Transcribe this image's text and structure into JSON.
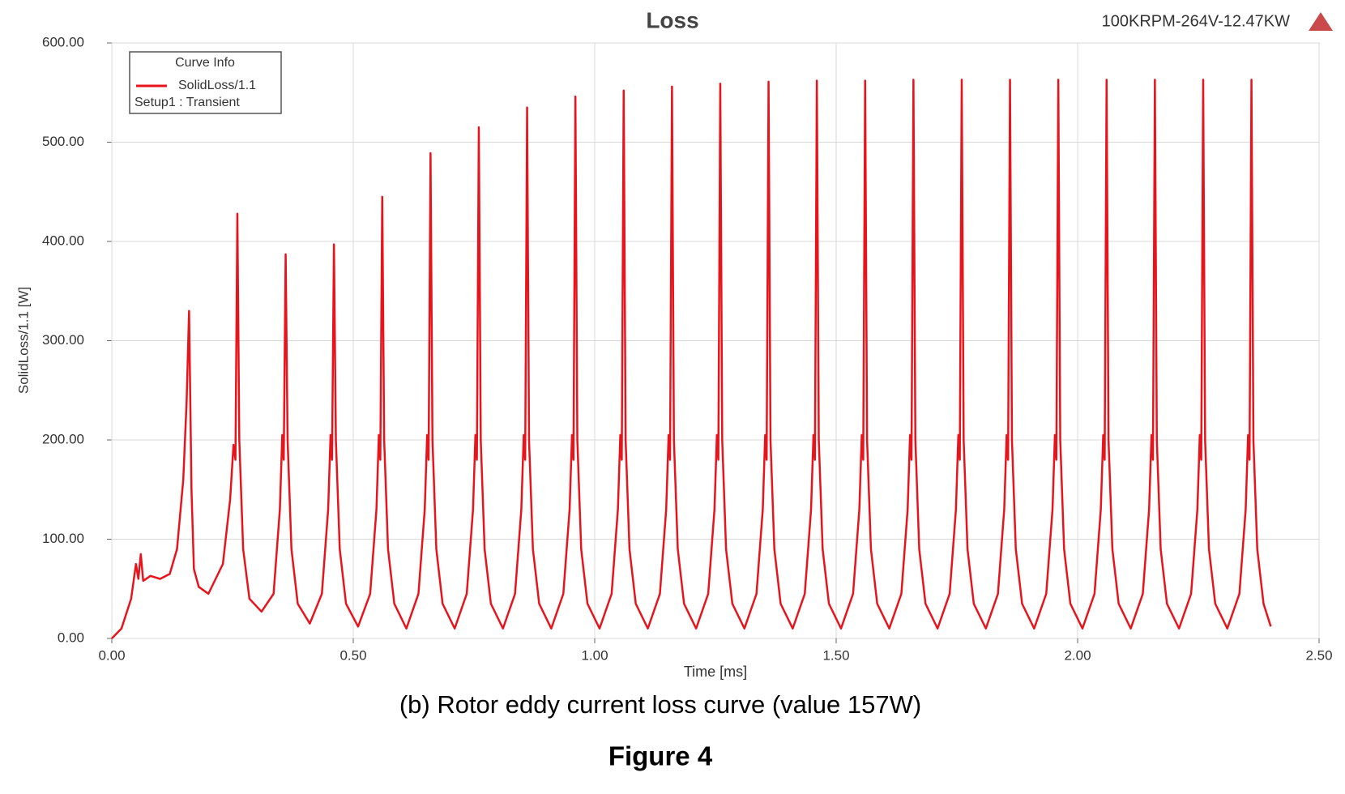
{
  "chart_data": {
    "type": "line",
    "title": "Loss",
    "subtitle": "100KRPM-264V-12.47KW",
    "legend_title": "Curve Info",
    "legend_note": "Setup1 : Transient",
    "xlabel": "Time [ms]",
    "ylabel": "SolidLoss/1.1 [W]",
    "caption": "(b) Rotor eddy current loss curve (value 157W)",
    "figure_label": "Figure 4",
    "xlim": [
      0,
      2.5
    ],
    "xticks": [
      {
        "value": 0,
        "label": "0.00"
      },
      {
        "value": 0.5,
        "label": "0.50"
      },
      {
        "value": 1,
        "label": "1.00"
      },
      {
        "value": 1.5,
        "label": "1.50"
      },
      {
        "value": 2,
        "label": "2.00"
      },
      {
        "value": 2.5,
        "label": "2.50"
      }
    ],
    "ylim": [
      0,
      600
    ],
    "yticks": [
      {
        "value": 0,
        "label": "0.00"
      },
      {
        "value": 100,
        "label": "100.00"
      },
      {
        "value": 200,
        "label": "200.00"
      },
      {
        "value": 300,
        "label": "300.00"
      },
      {
        "value": 400,
        "label": "400.00"
      },
      {
        "value": 500,
        "label": "500.00"
      },
      {
        "value": 600,
        "label": "600.00"
      }
    ],
    "grid": true,
    "legend": "upper left",
    "x": [
      0,
      0.02,
      0.04,
      0.05,
      0.055,
      0.06,
      0.065,
      0.08,
      0.1,
      0.12,
      0.135,
      0.148,
      0.155,
      0.16,
      0.165,
      0.17,
      0.18,
      0.2,
      0.23,
      0.245,
      0.252,
      0.256,
      0.26,
      0.264,
      0.272,
      0.285,
      0.31,
      0.335,
      0.348,
      0.353,
      0.356,
      0.36,
      0.364,
      0.372,
      0.385,
      0.41,
      0.435,
      0.448,
      0.453,
      0.456,
      0.46,
      0.464,
      0.472,
      0.485,
      0.51,
      0.535,
      0.548,
      0.553,
      0.556,
      0.56,
      0.564,
      0.572,
      0.585,
      0.61,
      0.635,
      0.648,
      0.653,
      0.656,
      0.66,
      0.664,
      0.672,
      0.685,
      0.71,
      0.735,
      0.748,
      0.753,
      0.756,
      0.76,
      0.764,
      0.772,
      0.785,
      0.81,
      0.835,
      0.848,
      0.853,
      0.856,
      0.86,
      0.864,
      0.872,
      0.885,
      0.91,
      0.935,
      0.948,
      0.953,
      0.956,
      0.96,
      0.964,
      0.972,
      0.985,
      1.01,
      1.035,
      1.048,
      1.053,
      1.056,
      1.06,
      1.064,
      1.072,
      1.085,
      1.11,
      1.135,
      1.148,
      1.153,
      1.156,
      1.16,
      1.164,
      1.172,
      1.185,
      1.21,
      1.235,
      1.248,
      1.253,
      1.256,
      1.26,
      1.264,
      1.272,
      1.285,
      1.31,
      1.335,
      1.348,
      1.353,
      1.356,
      1.36,
      1.364,
      1.372,
      1.385,
      1.41,
      1.435,
      1.448,
      1.453,
      1.456,
      1.46,
      1.464,
      1.472,
      1.485,
      1.51,
      1.535,
      1.548,
      1.553,
      1.556,
      1.56,
      1.564,
      1.572,
      1.585,
      1.61,
      1.635,
      1.648,
      1.653,
      1.656,
      1.66,
      1.664,
      1.672,
      1.685,
      1.71,
      1.735,
      1.748,
      1.753,
      1.756,
      1.76,
      1.764,
      1.772,
      1.785,
      1.81,
      1.835,
      1.848,
      1.853,
      1.856,
      1.86,
      1.864,
      1.872,
      1.885,
      1.91,
      1.935,
      1.948,
      1.953,
      1.956,
      1.96,
      1.964,
      1.972,
      1.985,
      2.01,
      2.035,
      2.048,
      2.053,
      2.056,
      2.06,
      2.064,
      2.072,
      2.085,
      2.11,
      2.135,
      2.148,
      2.153,
      2.156,
      2.16,
      2.164,
      2.172,
      2.185,
      2.21,
      2.235,
      2.248,
      2.253,
      2.256,
      2.26,
      2.264,
      2.272,
      2.285,
      2.31,
      2.335,
      2.348,
      2.353,
      2.356,
      2.36,
      2.364,
      2.372,
      2.385,
      2.4
    ],
    "series": [
      {
        "name": "SolidLoss/1.1",
        "color": "#e8141c",
        "values": [
          0,
          10,
          40,
          75,
          60,
          85,
          58,
          63,
          60,
          65,
          90,
          160,
          240,
          330,
          150,
          70,
          52,
          45,
          75,
          140,
          195,
          180,
          428,
          200,
          90,
          40,
          27,
          45,
          130,
          205,
          180,
          387,
          200,
          90,
          35,
          15,
          45,
          130,
          205,
          180,
          397,
          200,
          90,
          35,
          12,
          45,
          130,
          205,
          180,
          445,
          200,
          90,
          35,
          10,
          45,
          130,
          205,
          180,
          489,
          200,
          90,
          35,
          10,
          45,
          130,
          205,
          180,
          515,
          200,
          90,
          35,
          10,
          45,
          130,
          205,
          180,
          535,
          200,
          90,
          35,
          10,
          45,
          130,
          205,
          180,
          546,
          200,
          90,
          35,
          10,
          45,
          130,
          205,
          180,
          552,
          200,
          90,
          35,
          10,
          45,
          130,
          205,
          180,
          556,
          200,
          90,
          35,
          10,
          45,
          130,
          205,
          180,
          559,
          200,
          90,
          35,
          10,
          45,
          130,
          205,
          180,
          561,
          200,
          90,
          35,
          10,
          45,
          130,
          205,
          180,
          562,
          200,
          90,
          35,
          10,
          45,
          130,
          205,
          180,
          562,
          200,
          90,
          35,
          10,
          45,
          130,
          205,
          180,
          563,
          200,
          90,
          35,
          10,
          45,
          130,
          205,
          180,
          563,
          200,
          90,
          35,
          10,
          45,
          130,
          205,
          180,
          563,
          200,
          90,
          35,
          10,
          45,
          130,
          205,
          180,
          563,
          200,
          90,
          35,
          10,
          45,
          130,
          205,
          180,
          563,
          200,
          90,
          35,
          10,
          45,
          130,
          205,
          180,
          563,
          200,
          90,
          35,
          10,
          45,
          130,
          205,
          180,
          563,
          200,
          90,
          35,
          10,
          45,
          130,
          205,
          180,
          563,
          200,
          90,
          35,
          12
        ]
      }
    ]
  }
}
